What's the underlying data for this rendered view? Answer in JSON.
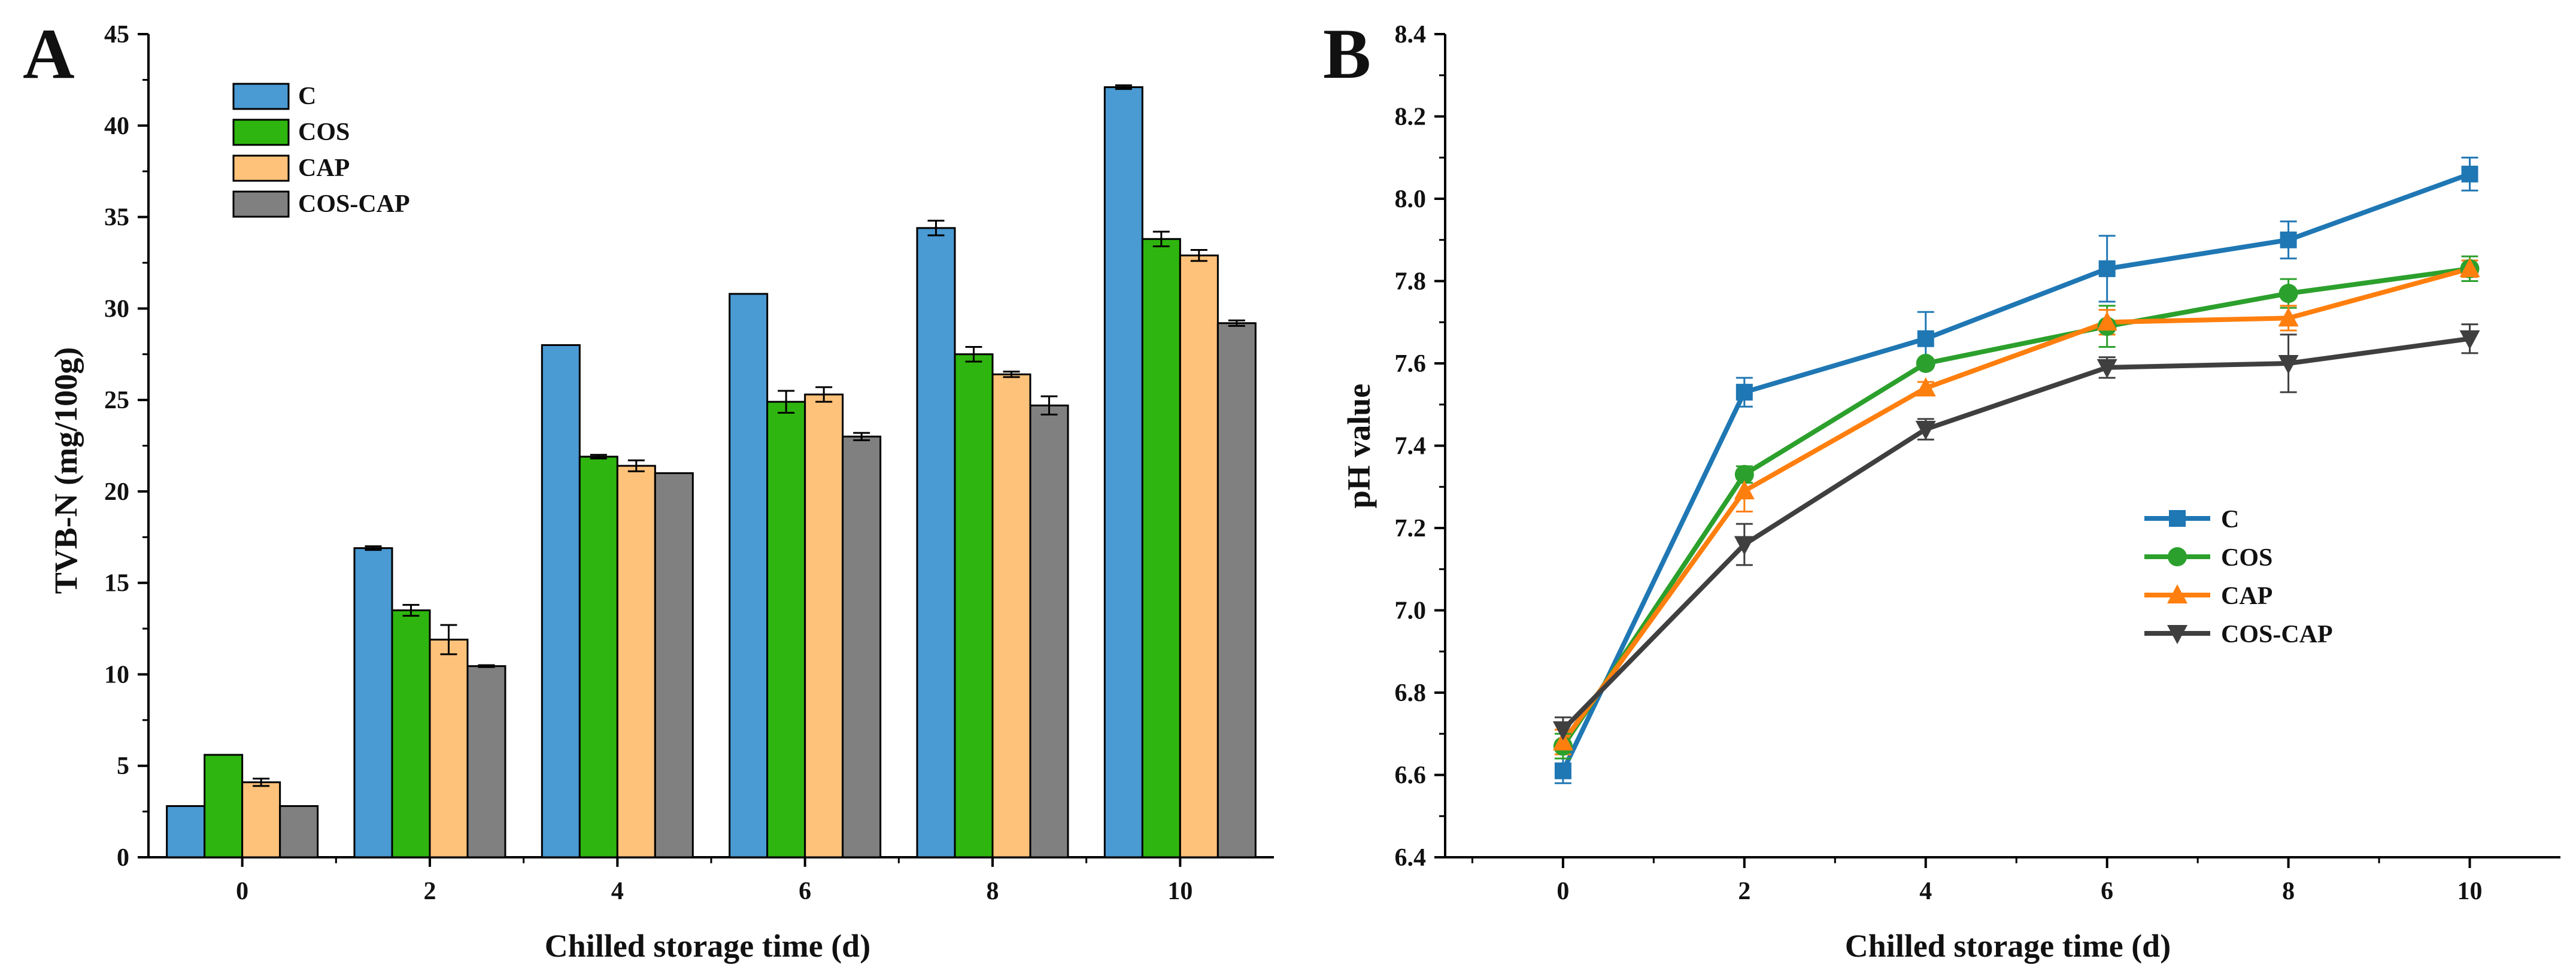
{
  "figure": {
    "panels": [
      "A",
      "B"
    ]
  },
  "chart_data": [
    {
      "type": "bar",
      "panel_label": "A",
      "title": "",
      "xlabel": "Chilled storage time (d)",
      "ylabel": "TVB-N (mg/100g)",
      "categories": [
        "0",
        "2",
        "4",
        "6",
        "8",
        "10"
      ],
      "ylim": [
        0,
        45
      ],
      "yticks": [
        0,
        5,
        10,
        15,
        20,
        25,
        30,
        35,
        40,
        45
      ],
      "legend_position": "top-left",
      "series": [
        {
          "name": "C",
          "color": "#4a9ad3",
          "values": [
            2.8,
            16.9,
            28.0,
            30.8,
            34.4,
            42.1
          ],
          "errors": [
            0,
            0.1,
            0,
            0,
            0.4,
            0.1
          ]
        },
        {
          "name": "COS",
          "color": "#2fb50f",
          "values": [
            5.6,
            13.5,
            21.9,
            24.9,
            27.5,
            33.8
          ],
          "errors": [
            0,
            0.3,
            0.1,
            0.6,
            0.4,
            0.4
          ]
        },
        {
          "name": "CAP",
          "color": "#fec27a",
          "values": [
            4.1,
            11.9,
            21.4,
            25.3,
            26.4,
            32.9
          ],
          "errors": [
            0.2,
            0.8,
            0.3,
            0.4,
            0.15,
            0.3
          ]
        },
        {
          "name": "COS-CAP",
          "color": "#808080",
          "values": [
            2.8,
            10.45,
            21.0,
            23.0,
            24.7,
            29.2
          ],
          "errors": [
            0,
            0.05,
            0,
            0.2,
            0.5,
            0.15
          ]
        }
      ]
    },
    {
      "type": "line",
      "panel_label": "B",
      "title": "",
      "xlabel": "Chilled storage time (d)",
      "ylabel": "pH value",
      "x": [
        0,
        2,
        4,
        6,
        8,
        10
      ],
      "xticks": [
        0,
        2,
        4,
        6,
        8,
        10
      ],
      "xlim": [
        -1.3,
        11
      ],
      "ylim": [
        6.4,
        8.4
      ],
      "yticks": [
        "6.4",
        "6.6",
        "6.8",
        "7.0",
        "7.2",
        "7.4",
        "7.6",
        "7.8",
        "8.0",
        "8.2",
        "8.4"
      ],
      "legend_position": "center-right",
      "series": [
        {
          "name": "C",
          "color": "#1f77b4",
          "marker": "square",
          "values": [
            6.61,
            7.53,
            7.66,
            7.83,
            7.9,
            8.06
          ],
          "errors": [
            0.03,
            0.035,
            0.065,
            0.08,
            0.045,
            0.04
          ]
        },
        {
          "name": "COS",
          "color": "#2ca02c",
          "marker": "circle",
          "values": [
            6.67,
            7.33,
            7.6,
            7.69,
            7.77,
            7.83
          ],
          "errors": [
            0.03,
            0.02,
            0.01,
            0.05,
            0.035,
            0.03
          ]
        },
        {
          "name": "CAP",
          "color": "#ff7f0e",
          "marker": "triangle-up",
          "values": [
            6.68,
            7.29,
            7.54,
            7.7,
            7.71,
            7.83
          ],
          "errors": [
            0.03,
            0.05,
            0.015,
            0.03,
            0.03,
            0.02
          ]
        },
        {
          "name": "COS-CAP",
          "color": "#3f3f3f",
          "marker": "triangle-down",
          "values": [
            6.71,
            7.16,
            7.44,
            7.59,
            7.6,
            7.66
          ],
          "errors": [
            0.03,
            0.05,
            0.025,
            0.025,
            0.07,
            0.035
          ]
        }
      ]
    }
  ]
}
